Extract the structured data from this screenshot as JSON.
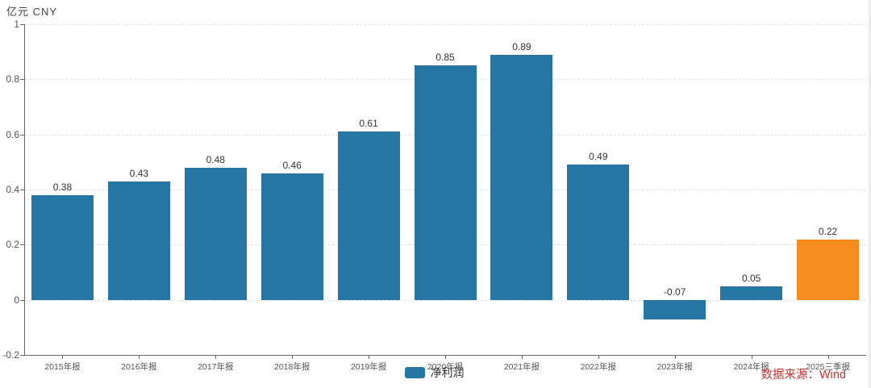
{
  "chart": {
    "unit_label": "亿元 CNY",
    "source_text": "数据来源：Wind",
    "colors": {
      "bar": "#2576a2",
      "bar_highlight": "#f68b20",
      "axis": "#666666",
      "grid": "#e4e4e4",
      "tick_label": "#555555",
      "value_label": "#333333",
      "source_text": "#cc3333"
    }
  },
  "chart_data": {
    "type": "bar",
    "title": "",
    "categories": [
      "2015年报",
      "2016年报",
      "2017年报",
      "2018年报",
      "2019年报",
      "2020年报",
      "2021年报",
      "2022年报",
      "2023年报",
      "2024年报",
      "2025三季报"
    ],
    "series": [
      {
        "name": "净利润",
        "values": [
          0.38,
          0.43,
          0.48,
          0.46,
          0.61,
          0.85,
          0.89,
          0.49,
          -0.07,
          0.05,
          0.22
        ]
      }
    ],
    "data_labels": [
      "0.38",
      "0.43",
      "0.48",
      "0.46",
      "0.61",
      "0.85",
      "0.89",
      "0.49",
      "-0.07",
      "0.05",
      "0.22"
    ],
    "bar_colors": [
      "#2576a2",
      "#2576a2",
      "#2576a2",
      "#2576a2",
      "#2576a2",
      "#2576a2",
      "#2576a2",
      "#2576a2",
      "#2576a2",
      "#2576a2",
      "#f68b20"
    ],
    "xlabel": "",
    "ylabel": "亿元 CNY",
    "ylim": [
      -0.2,
      1
    ],
    "ytick_interval": 0.2,
    "ytick_labels": [
      "-0.2",
      "0",
      "0.2",
      "0.4",
      "0.6",
      "0.8",
      "1"
    ],
    "grid": true,
    "legend_position": "bottom",
    "legend": [
      "净利润"
    ]
  }
}
